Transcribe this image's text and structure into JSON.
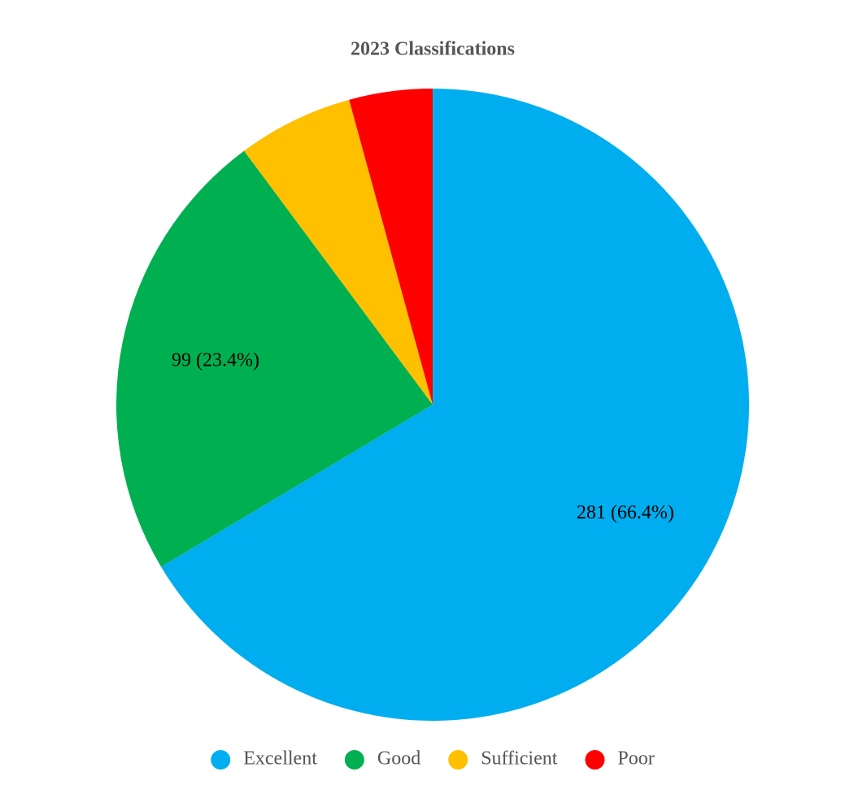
{
  "chart_data": {
    "type": "pie",
    "title": "2023 Classifications",
    "categories": [
      "Excellent",
      "Good",
      "Sufficient",
      "Poor"
    ],
    "values": [
      281,
      99,
      25,
      18
    ],
    "value_labels": [
      "281 (66.4%)",
      "99 (23.4%)",
      null,
      null
    ],
    "colors": [
      "#00aeef",
      "#00b050",
      "#ffc000",
      "#ff0000"
    ],
    "legend": "bottom"
  }
}
